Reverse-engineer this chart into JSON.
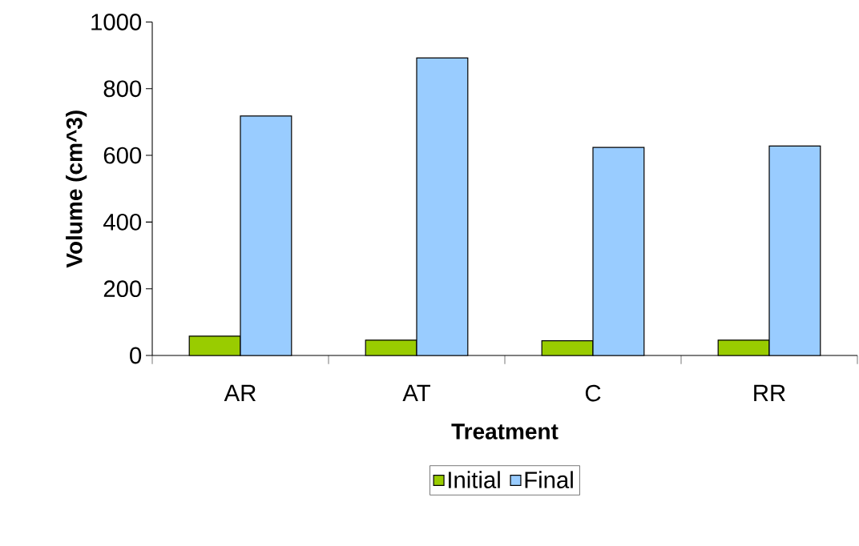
{
  "chart_data": {
    "type": "bar",
    "xlabel": "Treatment",
    "ylabel": "Volume (cm^3)",
    "categories": [
      "AR",
      "AT",
      "C",
      "RR"
    ],
    "series": [
      {
        "name": "Initial",
        "color": "#99cc00",
        "values": [
          58,
          46,
          44,
          46
        ]
      },
      {
        "name": "Final",
        "color": "#99ccff",
        "values": [
          718,
          892,
          624,
          628
        ]
      }
    ],
    "ylim": [
      0,
      1000
    ],
    "yticks": [
      0,
      200,
      400,
      600,
      800,
      1000
    ],
    "grid": false,
    "legend": "bottom"
  }
}
